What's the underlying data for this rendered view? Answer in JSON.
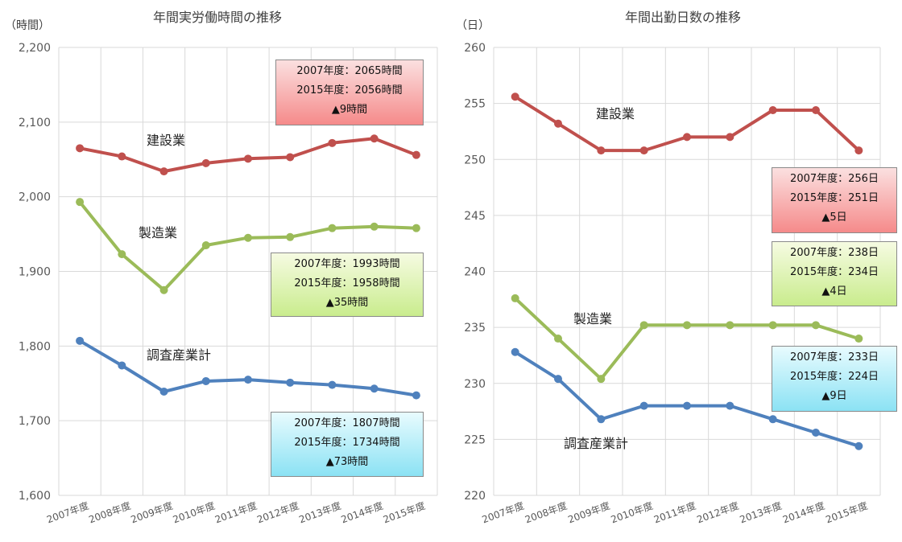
{
  "chart_data": [
    {
      "type": "line",
      "title": "年間実労働時間の推移",
      "ylabel": "（時間）",
      "ylim": [
        1600,
        2200
      ],
      "yticks": [
        "1,600",
        "1,700",
        "1,800",
        "1,900",
        "2,000",
        "2,100",
        "2,200"
      ],
      "categories": [
        "2007年度",
        "2008年度",
        "2009年度",
        "2010年度",
        "2011年度",
        "2012年度",
        "2013年度",
        "2014年度",
        "2015年度"
      ],
      "series": [
        {
          "name": "建設業",
          "color": "#c0504d",
          "values": [
            2065,
            2054,
            2034,
            2045,
            2051,
            2053,
            2072,
            2078,
            2056
          ]
        },
        {
          "name": "製造業",
          "color": "#9bbb59",
          "values": [
            1993,
            1923,
            1875,
            1935,
            1945,
            1946,
            1958,
            1960,
            1958
          ]
        },
        {
          "name": "調査産業計",
          "color": "#4f81bd",
          "values": [
            1807,
            1774,
            1739,
            1753,
            1755,
            1751,
            1748,
            1743,
            1734
          ]
        }
      ],
      "annotations": [
        {
          "style": "red",
          "lines": [
            "2007年度：2065時間",
            "2015年度：2056時間",
            "▲9時間"
          ]
        },
        {
          "style": "green",
          "lines": [
            "2007年度：1993時間",
            "2015年度：1958時間",
            "▲35時間"
          ]
        },
        {
          "style": "blue",
          "lines": [
            "2007年度：1807時間",
            "2015年度：1734時間",
            "▲73時間"
          ]
        }
      ]
    },
    {
      "type": "line",
      "title": "年間出勤日数の推移",
      "ylabel": "（日）",
      "ylim": [
        220,
        260
      ],
      "yticks": [
        "220",
        "225",
        "230",
        "235",
        "240",
        "245",
        "250",
        "255",
        "260"
      ],
      "categories": [
        "2007年度",
        "2008年度",
        "2009年度",
        "2010年度",
        "2011年度",
        "2012年度",
        "2013年度",
        "2014年度",
        "2015年度"
      ],
      "series": [
        {
          "name": "建設業",
          "color": "#c0504d",
          "values": [
            255.6,
            253.2,
            250.8,
            250.8,
            252,
            252,
            254.4,
            254.4,
            250.8
          ]
        },
        {
          "name": "製造業",
          "color": "#9bbb59",
          "values": [
            237.6,
            234,
            230.4,
            235.2,
            235.2,
            235.2,
            235.2,
            235.2,
            234
          ]
        },
        {
          "name": "調査産業計",
          "color": "#4f81bd",
          "values": [
            232.8,
            230.4,
            226.8,
            228,
            228,
            228,
            226.8,
            225.6,
            224.4
          ]
        }
      ],
      "annotations": [
        {
          "style": "red",
          "lines": [
            "2007年度：256日",
            "2015年度：251日",
            "▲5日"
          ]
        },
        {
          "style": "green",
          "lines": [
            "2007年度：238日",
            "2015年度：234日",
            "▲4日"
          ]
        },
        {
          "style": "blue",
          "lines": [
            "2007年度：233日",
            "2015年度：224日",
            "▲9日"
          ]
        }
      ]
    }
  ]
}
